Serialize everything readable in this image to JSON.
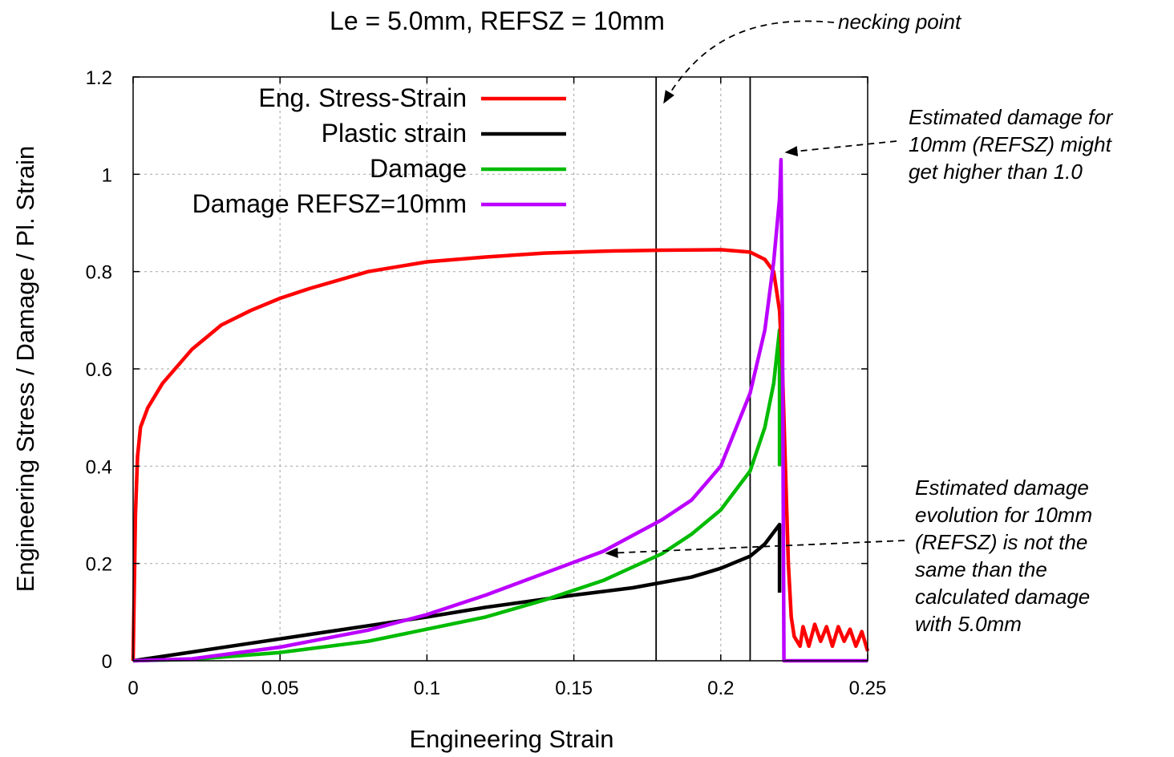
{
  "chart_data": {
    "type": "line",
    "title": "Le = 5.0mm, REFSZ = 10mm",
    "xlabel": "Engineering Strain",
    "ylabel": "Engineering Stress / Damage / Pl. Strain",
    "xlim": [
      0,
      0.25
    ],
    "ylim": [
      0,
      1.2
    ],
    "x_ticks": [
      "0",
      "0.05",
      "0.1",
      "0.15",
      "0.2",
      "0.25"
    ],
    "y_ticks": [
      "0",
      "0.2",
      "0.4",
      "0.6",
      "0.8",
      "1",
      "1.2"
    ],
    "grid": true,
    "legend_position": "top-left",
    "vertical_lines": [
      0.178,
      0.21
    ],
    "series": [
      {
        "name": "Eng. Stress-Strain",
        "color": "#ff0000",
        "points": [
          [
            0,
            0
          ],
          [
            0.0008,
            0.3
          ],
          [
            0.0015,
            0.42
          ],
          [
            0.0025,
            0.48
          ],
          [
            0.005,
            0.52
          ],
          [
            0.01,
            0.57
          ],
          [
            0.02,
            0.64
          ],
          [
            0.03,
            0.69
          ],
          [
            0.04,
            0.72
          ],
          [
            0.05,
            0.745
          ],
          [
            0.06,
            0.765
          ],
          [
            0.08,
            0.8
          ],
          [
            0.1,
            0.82
          ],
          [
            0.12,
            0.83
          ],
          [
            0.14,
            0.838
          ],
          [
            0.16,
            0.842
          ],
          [
            0.18,
            0.844
          ],
          [
            0.2,
            0.845
          ],
          [
            0.21,
            0.84
          ],
          [
            0.215,
            0.825
          ],
          [
            0.218,
            0.8
          ],
          [
            0.22,
            0.72
          ],
          [
            0.221,
            0.6
          ],
          [
            0.222,
            0.4
          ],
          [
            0.223,
            0.2
          ],
          [
            0.224,
            0.09
          ],
          [
            0.225,
            0.05
          ],
          [
            0.227,
            0.03
          ],
          [
            0.228,
            0.07
          ],
          [
            0.23,
            0.03
          ],
          [
            0.232,
            0.075
          ],
          [
            0.234,
            0.04
          ],
          [
            0.236,
            0.07
          ],
          [
            0.238,
            0.03
          ],
          [
            0.24,
            0.07
          ],
          [
            0.242,
            0.04
          ],
          [
            0.244,
            0.065
          ],
          [
            0.246,
            0.03
          ],
          [
            0.248,
            0.06
          ],
          [
            0.25,
            0.02
          ]
        ]
      },
      {
        "name": "Plastic strain",
        "color": "#000000",
        "points": [
          [
            0,
            0
          ],
          [
            0.02,
            0.018
          ],
          [
            0.05,
            0.045
          ],
          [
            0.08,
            0.072
          ],
          [
            0.1,
            0.09
          ],
          [
            0.12,
            0.11
          ],
          [
            0.15,
            0.135
          ],
          [
            0.17,
            0.15
          ],
          [
            0.19,
            0.172
          ],
          [
            0.2,
            0.19
          ],
          [
            0.21,
            0.215
          ],
          [
            0.215,
            0.24
          ],
          [
            0.22,
            0.28
          ],
          [
            0.22,
            0.14
          ]
        ]
      },
      {
        "name": "Damage",
        "color": "#00bb00",
        "points": [
          [
            0,
            0
          ],
          [
            0.02,
            0.003
          ],
          [
            0.05,
            0.017
          ],
          [
            0.08,
            0.04
          ],
          [
            0.1,
            0.065
          ],
          [
            0.12,
            0.09
          ],
          [
            0.14,
            0.125
          ],
          [
            0.16,
            0.165
          ],
          [
            0.18,
            0.22
          ],
          [
            0.19,
            0.26
          ],
          [
            0.2,
            0.31
          ],
          [
            0.21,
            0.39
          ],
          [
            0.215,
            0.48
          ],
          [
            0.218,
            0.57
          ],
          [
            0.22,
            0.68
          ],
          [
            0.22,
            0.4
          ]
        ]
      },
      {
        "name": "Damage REFSZ=10mm",
        "color": "#bb00ff",
        "points": [
          [
            0,
            0
          ],
          [
            0.02,
            0.004
          ],
          [
            0.05,
            0.028
          ],
          [
            0.08,
            0.063
          ],
          [
            0.1,
            0.095
          ],
          [
            0.12,
            0.135
          ],
          [
            0.14,
            0.18
          ],
          [
            0.16,
            0.225
          ],
          [
            0.18,
            0.29
          ],
          [
            0.19,
            0.33
          ],
          [
            0.2,
            0.4
          ],
          [
            0.21,
            0.55
          ],
          [
            0.215,
            0.68
          ],
          [
            0.218,
            0.82
          ],
          [
            0.22,
            0.95
          ],
          [
            0.2205,
            1.03
          ],
          [
            0.221,
            0.7
          ],
          [
            0.2215,
            0
          ],
          [
            0.25,
            0
          ]
        ]
      }
    ],
    "annotations": [
      {
        "text": [
          "necking point"
        ]
      },
      {
        "text": [
          "Estimated damage for",
          "10mm (REFSZ) might",
          "get higher than 1.0"
        ]
      },
      {
        "text": [
          "Estimated damage",
          "evolution for 10mm",
          "(REFSZ) is not the",
          "same than the",
          "calculated damage",
          "with 5.0mm"
        ]
      }
    ]
  }
}
